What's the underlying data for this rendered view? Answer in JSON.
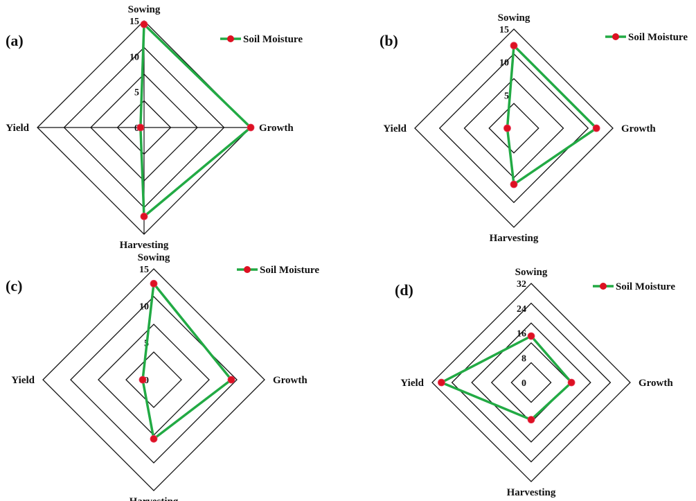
{
  "colors": {
    "line": "#22aa44",
    "marker": "#dd1122",
    "grid": "#111111",
    "background": "#ffffff"
  },
  "chart_data": [
    {
      "type": "radar",
      "panel": "(a)",
      "axes": [
        "Sowing",
        "Growth",
        "Harvesting",
        "Yield"
      ],
      "rmax": 15,
      "ticks": [
        "0",
        "5",
        "10",
        "15"
      ],
      "grid_rings": 3,
      "spokes": true,
      "legend": "top-right",
      "series": [
        {
          "name": "Soil Moisture",
          "values": [
            14.5,
            15,
            12.5,
            0.5
          ]
        }
      ]
    },
    {
      "type": "radar",
      "panel": "(b)",
      "axes": [
        "Sowing",
        "Growth",
        "Harvesting",
        "Yield"
      ],
      "rmax": 15,
      "ticks": [
        "0",
        "5",
        "10",
        "15"
      ],
      "grid_rings": 3,
      "spokes": false,
      "legend": "top-right",
      "series": [
        {
          "name": "Soil Moisture",
          "values": [
            12.5,
            12.5,
            8.5,
            1
          ]
        }
      ]
    },
    {
      "type": "radar",
      "panel": "(c)",
      "axes": [
        "Sowing",
        "Growth",
        "Harvesting",
        "Yield"
      ],
      "rmax": 15,
      "ticks": [
        "0",
        "5",
        "10",
        "15"
      ],
      "grid_rings": 3,
      "spokes": false,
      "legend": "top-right",
      "series": [
        {
          "name": "Soil Moisture",
          "values": [
            13,
            10.5,
            8,
            1.5
          ]
        }
      ]
    },
    {
      "type": "radar",
      "panel": "(d)",
      "axes": [
        "Sowing",
        "Growth",
        "Harvesting",
        "Yield"
      ],
      "rmax": 32,
      "ticks": [
        "0",
        "8",
        "16",
        "24",
        "32"
      ],
      "grid_rings": 4,
      "spokes": false,
      "legend": "top-right",
      "series": [
        {
          "name": "Soil Moisture",
          "values": [
            15,
            13,
            12,
            29
          ]
        }
      ]
    }
  ]
}
